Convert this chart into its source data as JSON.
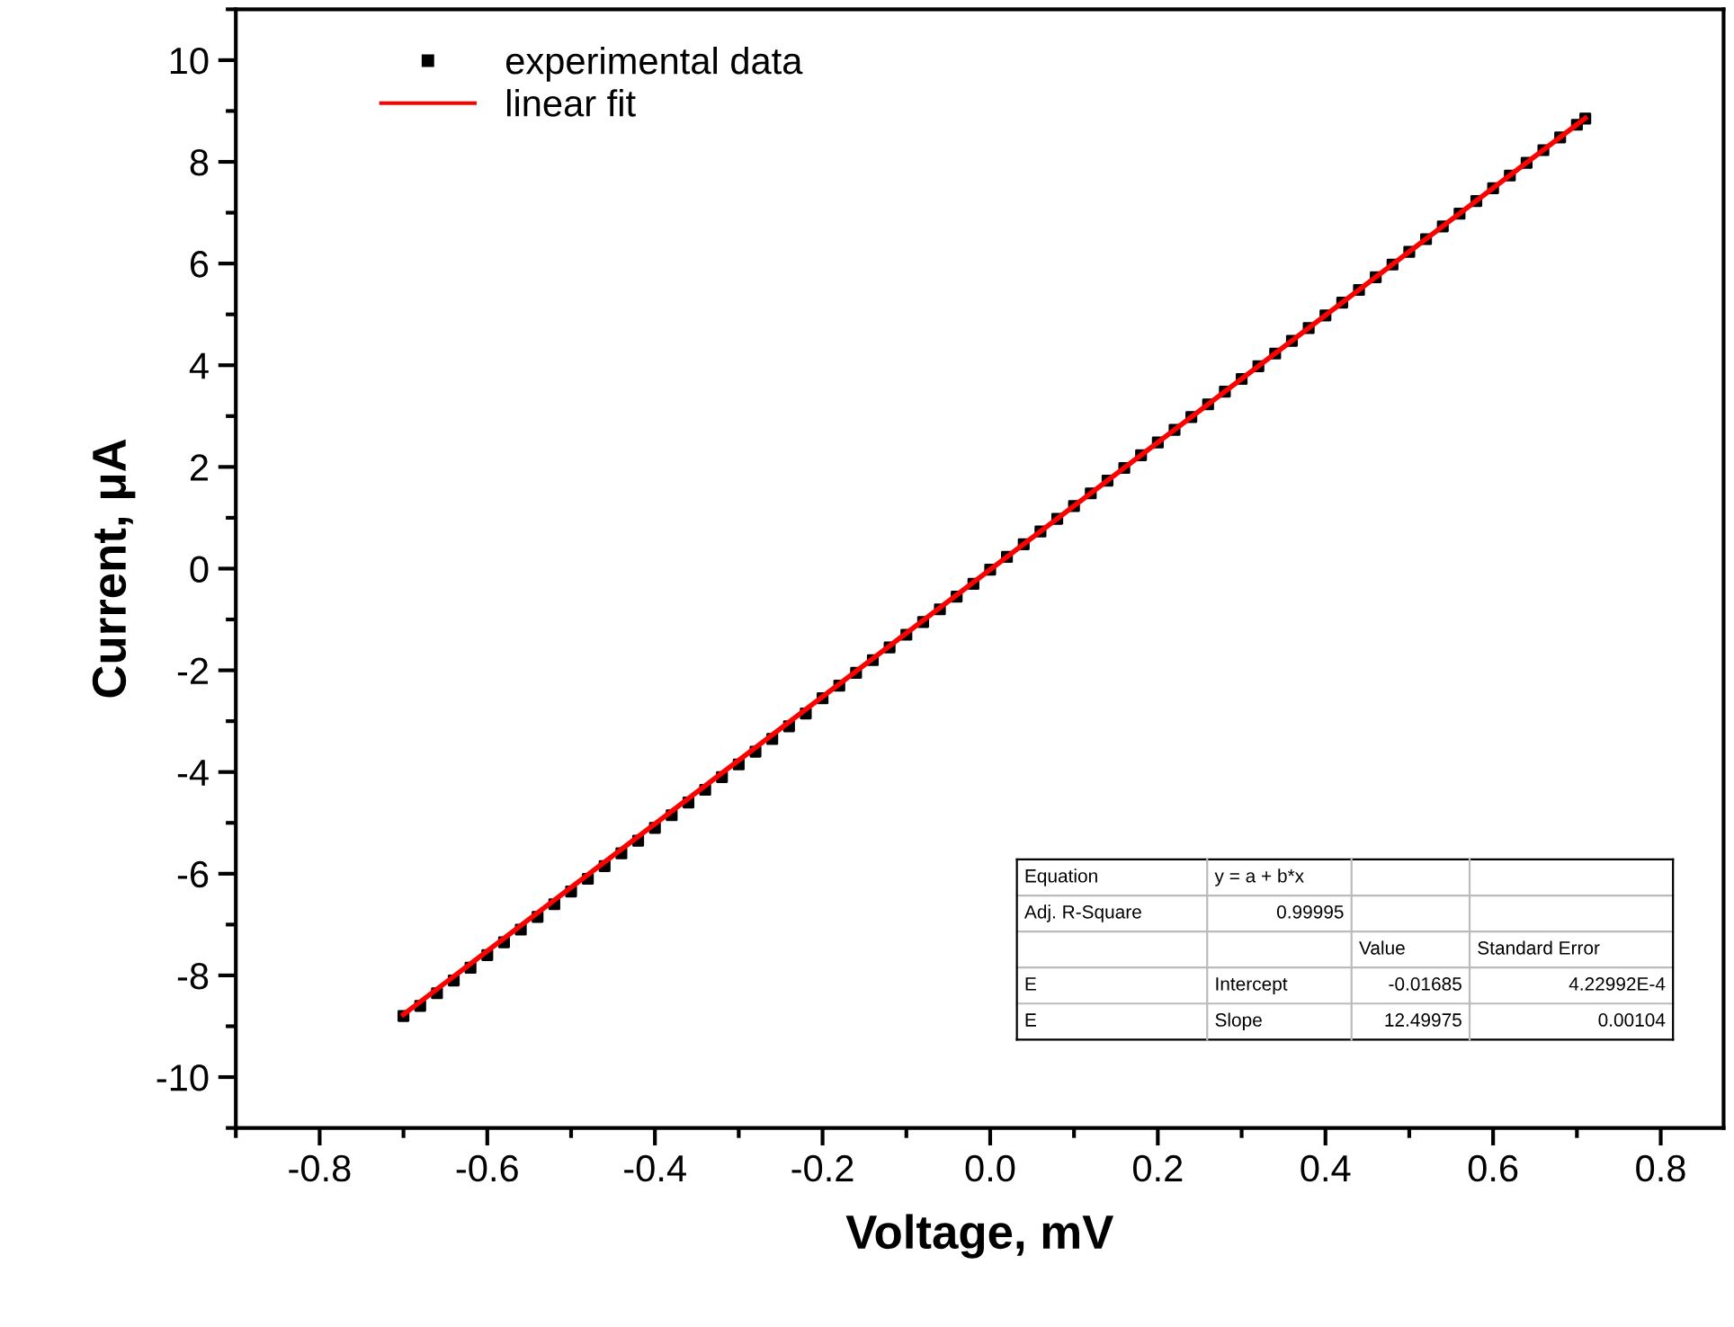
{
  "chart_data": {
    "type": "scatter",
    "xlabel": "Voltage, mV",
    "ylabel": "Current, μA",
    "xlim": [
      -0.9,
      0.875
    ],
    "ylim": [
      -11,
      11
    ],
    "xticks": [
      -0.8,
      -0.6,
      -0.4,
      -0.2,
      {
        "value": 0,
        "label": "0.0"
      },
      0.2,
      0.4,
      0.6,
      0.8
    ],
    "yticks": [
      -10,
      -8,
      -6,
      -4,
      -2,
      0,
      2,
      4,
      6,
      8,
      10
    ],
    "grid": false,
    "legend": "top left",
    "marker": "square",
    "series": [
      {
        "name": "experimental data",
        "color": "#000000",
        "x": [
          -0.7,
          -0.68,
          -0.66,
          -0.64,
          -0.62,
          -0.6,
          -0.58,
          -0.56,
          -0.54,
          -0.52,
          -0.5,
          -0.48,
          -0.46,
          -0.44,
          -0.42,
          -0.4,
          -0.38,
          -0.36,
          -0.34,
          -0.32,
          -0.3,
          -0.28,
          -0.26,
          -0.24,
          -0.22,
          -0.2,
          -0.18,
          -0.16,
          -0.14,
          -0.12,
          -0.1,
          -0.08,
          -0.06,
          -0.04,
          -0.02,
          0.0,
          0.02,
          0.04,
          0.06,
          0.08,
          0.1,
          0.12,
          0.14,
          0.16,
          0.18,
          0.2,
          0.22,
          0.24,
          0.26,
          0.28,
          0.3,
          0.32,
          0.34,
          0.36,
          0.38,
          0.4,
          0.42,
          0.44,
          0.46,
          0.48,
          0.5,
          0.52,
          0.54,
          0.56,
          0.58,
          0.6,
          0.62,
          0.64,
          0.66,
          0.68,
          0.7,
          0.71
        ],
        "values": [
          -8.8,
          -8.6,
          -8.35,
          -8.1,
          -7.85,
          -7.6,
          -7.35,
          -7.1,
          -6.85,
          -6.6,
          -6.35,
          -6.1,
          -5.85,
          -5.6,
          -5.35,
          -5.1,
          -4.85,
          -4.6,
          -4.35,
          -4.1,
          -3.85,
          -3.6,
          -3.35,
          -3.1,
          -2.85,
          -2.55,
          -2.3,
          -2.05,
          -1.8,
          -1.55,
          -1.3,
          -1.05,
          -0.8,
          -0.55,
          -0.3,
          -0.02,
          0.23,
          0.48,
          0.73,
          0.98,
          1.23,
          1.48,
          1.73,
          1.98,
          2.23,
          2.48,
          2.73,
          2.98,
          3.23,
          3.48,
          3.73,
          3.98,
          4.23,
          4.48,
          4.73,
          4.98,
          5.23,
          5.48,
          5.73,
          5.98,
          6.23,
          6.48,
          6.73,
          6.98,
          7.23,
          7.48,
          7.73,
          7.98,
          8.23,
          8.48,
          8.73,
          8.85
        ]
      },
      {
        "name": "linear fit",
        "type": "line",
        "color": "#ff0000",
        "line_style": "solid",
        "marker": "none",
        "x": [
          -0.7,
          0.71
        ],
        "values": [
          -8.77,
          8.86
        ]
      }
    ],
    "annotations": [
      "Equation",
      "y = a + b*x",
      "Adj. R-Square",
      "0.99995",
      "Value",
      "Standard Error",
      "E",
      "Intercept",
      "-0.01685",
      "4.22992E-4",
      "E",
      "Slope",
      "12.49975",
      "0.00104"
    ]
  }
}
